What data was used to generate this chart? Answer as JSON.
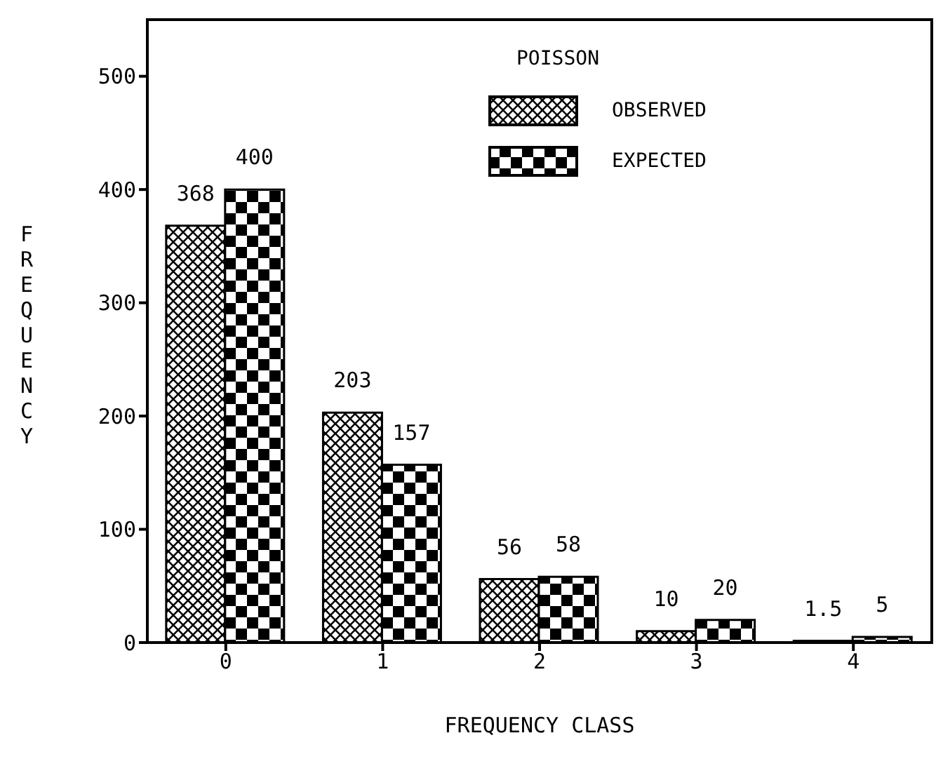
{
  "chart_data": {
    "type": "bar",
    "title": "POISSON",
    "xlabel": "FREQUENCY CLASS",
    "ylabel": "FREQUENCY",
    "categories": [
      "0",
      "1",
      "2",
      "3",
      "4"
    ],
    "series": [
      {
        "name": "OBSERVED",
        "color": "#000000",
        "values": [
          368,
          203,
          56,
          10,
          1.5
        ]
      },
      {
        "name": "EXPECTED",
        "color": "#000000",
        "values": [
          400,
          157,
          58,
          20,
          5
        ]
      }
    ],
    "ylim": [
      0,
      550
    ],
    "yticks": [
      0,
      100,
      200,
      300,
      400,
      500
    ],
    "grid": false,
    "legend": "top right",
    "data_labels": true
  }
}
